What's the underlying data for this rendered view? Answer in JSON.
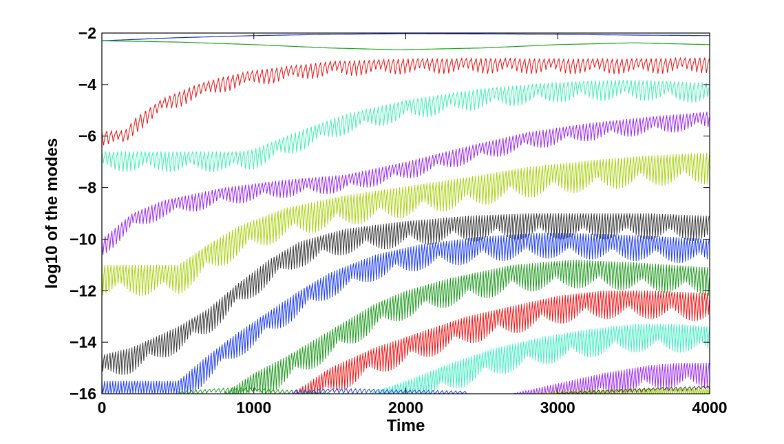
{
  "chart_data": {
    "type": "line",
    "title": "",
    "xlabel": "Time",
    "ylabel": "log10 of the modes",
    "xlim": [
      0,
      4000
    ],
    "ylim": [
      -16,
      -2
    ],
    "xticks": [
      0,
      1000,
      2000,
      3000,
      4000
    ],
    "yticks": [
      -2,
      -4,
      -6,
      -8,
      -10,
      -12,
      -14,
      -16
    ],
    "grid": false,
    "legend": "none",
    "series": [
      {
        "color": "#1f2fd0",
        "noise": 0.0,
        "noise_period": 0,
        "points": [
          [
            0,
            -2.3
          ],
          [
            500,
            -2.18
          ],
          [
            1000,
            -2.1
          ],
          [
            1500,
            -2.05
          ],
          [
            2000,
            -2.02
          ],
          [
            2500,
            -2.03
          ],
          [
            3000,
            -2.05
          ],
          [
            3500,
            -2.08
          ],
          [
            4000,
            -2.1
          ]
        ]
      },
      {
        "color": "#1aa31a",
        "noise": 0.0,
        "noise_period": 0,
        "points": [
          [
            0,
            -2.3
          ],
          [
            500,
            -2.35
          ],
          [
            1000,
            -2.45
          ],
          [
            1500,
            -2.58
          ],
          [
            1950,
            -2.65
          ],
          [
            2500,
            -2.58
          ],
          [
            3000,
            -2.45
          ],
          [
            3500,
            -2.38
          ],
          [
            4000,
            -2.45
          ]
        ]
      },
      {
        "color": "#e81010",
        "noise": 0.6,
        "noise_period": 32,
        "points": [
          [
            0,
            -5.8
          ],
          [
            150,
            -5.8
          ],
          [
            220,
            -5.3
          ],
          [
            400,
            -4.55
          ],
          [
            600,
            -4.05
          ],
          [
            800,
            -3.7
          ],
          [
            1000,
            -3.45
          ],
          [
            1500,
            -3.1
          ],
          [
            2000,
            -3.0
          ],
          [
            2500,
            -2.98
          ],
          [
            3000,
            -3.0
          ],
          [
            3500,
            -3.0
          ],
          [
            4000,
            -2.95
          ]
        ]
      },
      {
        "color": "#3df0b0",
        "noise": 0.8,
        "noise_period": 26,
        "points": [
          [
            0,
            -6.6
          ],
          [
            900,
            -6.6
          ],
          [
            1000,
            -6.5
          ],
          [
            1300,
            -5.8
          ],
          [
            1600,
            -5.15
          ],
          [
            2000,
            -4.6
          ],
          [
            2500,
            -4.15
          ],
          [
            3000,
            -3.9
          ],
          [
            3400,
            -3.82
          ],
          [
            3700,
            -3.85
          ],
          [
            4000,
            -3.95
          ]
        ]
      },
      {
        "color": "#9a28ea",
        "noise": 0.7,
        "noise_period": 22,
        "points": [
          [
            0,
            -10.0
          ],
          [
            100,
            -9.5
          ],
          [
            200,
            -9.0
          ],
          [
            400,
            -8.5
          ],
          [
            800,
            -8.0
          ],
          [
            1200,
            -7.7
          ],
          [
            1600,
            -7.5
          ],
          [
            2000,
            -7.0
          ],
          [
            2400,
            -6.4
          ],
          [
            2800,
            -5.85
          ],
          [
            3200,
            -5.5
          ],
          [
            3600,
            -5.25
          ],
          [
            4000,
            -5.05
          ]
        ]
      },
      {
        "color": "#a6d20a",
        "noise": 1.2,
        "noise_period": 20,
        "points": [
          [
            0,
            -11.0
          ],
          [
            500,
            -11.0
          ],
          [
            700,
            -10.2
          ],
          [
            900,
            -9.5
          ],
          [
            1200,
            -8.8
          ],
          [
            1600,
            -8.3
          ],
          [
            2000,
            -7.95
          ],
          [
            2400,
            -7.6
          ],
          [
            2800,
            -7.2
          ],
          [
            3200,
            -6.95
          ],
          [
            3600,
            -6.75
          ],
          [
            4000,
            -6.65
          ]
        ]
      },
      {
        "color": "#3a3a3a",
        "noise": 1.0,
        "noise_period": 18,
        "points": [
          [
            0,
            -14.5
          ],
          [
            200,
            -14.2
          ],
          [
            500,
            -13.4
          ],
          [
            700,
            -12.7
          ],
          [
            900,
            -11.7
          ],
          [
            1100,
            -10.8
          ],
          [
            1300,
            -10.1
          ],
          [
            1600,
            -9.6
          ],
          [
            2000,
            -9.3
          ],
          [
            2400,
            -9.1
          ],
          [
            2800,
            -9.0
          ],
          [
            3200,
            -9.0
          ],
          [
            3600,
            -9.0
          ],
          [
            4000,
            -9.1
          ]
        ]
      },
      {
        "color": "#1f3ff0",
        "noise": 1.0,
        "noise_period": 18,
        "points": [
          [
            0,
            -15.5
          ],
          [
            500,
            -15.5
          ],
          [
            700,
            -14.5
          ],
          [
            900,
            -13.6
          ],
          [
            1100,
            -12.8
          ],
          [
            1300,
            -12.0
          ],
          [
            1500,
            -11.3
          ],
          [
            1800,
            -10.6
          ],
          [
            2100,
            -10.2
          ],
          [
            2500,
            -9.9
          ],
          [
            2900,
            -9.75
          ],
          [
            3300,
            -9.8
          ],
          [
            3700,
            -9.9
          ],
          [
            4000,
            -10.0
          ]
        ]
      },
      {
        "color": "#1e9a1e",
        "noise": 1.1,
        "noise_period": 18,
        "points": [
          [
            800,
            -16.0
          ],
          [
            1000,
            -15.2
          ],
          [
            1200,
            -14.6
          ],
          [
            1400,
            -13.9
          ],
          [
            1600,
            -13.2
          ],
          [
            1800,
            -12.5
          ],
          [
            2000,
            -12.0
          ],
          [
            2300,
            -11.5
          ],
          [
            2700,
            -11.0
          ],
          [
            3100,
            -10.8
          ],
          [
            3500,
            -10.9
          ],
          [
            4000,
            -11.1
          ]
        ]
      },
      {
        "color": "#f01515",
        "noise": 1.1,
        "noise_period": 18,
        "points": [
          [
            1250,
            -16.0
          ],
          [
            1500,
            -15.0
          ],
          [
            1800,
            -14.2
          ],
          [
            2100,
            -13.6
          ],
          [
            2400,
            -13.0
          ],
          [
            2700,
            -12.6
          ],
          [
            3000,
            -12.2
          ],
          [
            3300,
            -12.0
          ],
          [
            3600,
            -12.0
          ],
          [
            4000,
            -12.1
          ]
        ]
      },
      {
        "color": "#40f0c0",
        "noise": 1.1,
        "noise_period": 18,
        "points": [
          [
            1750,
            -16.0
          ],
          [
            2000,
            -15.5
          ],
          [
            2300,
            -14.8
          ],
          [
            2600,
            -14.2
          ],
          [
            2900,
            -13.8
          ],
          [
            3200,
            -13.5
          ],
          [
            3500,
            -13.3
          ],
          [
            3800,
            -13.3
          ],
          [
            4000,
            -13.4
          ]
        ]
      },
      {
        "color": "#9d2cf0",
        "noise": 1.0,
        "noise_period": 18,
        "points": [
          [
            2700,
            -16.0
          ],
          [
            3000,
            -15.6
          ],
          [
            3300,
            -15.2
          ],
          [
            3600,
            -14.9
          ],
          [
            3800,
            -14.8
          ],
          [
            4000,
            -14.8
          ]
        ]
      },
      {
        "color": "#a6d20a",
        "noise": 0.3,
        "noise_period": 14,
        "points": [
          [
            2800,
            -16.0
          ],
          [
            3200,
            -15.85
          ],
          [
            3600,
            -15.8
          ],
          [
            4000,
            -15.8
          ]
        ]
      },
      {
        "color": "#3a3a3a",
        "noise": 0.15,
        "noise_period": 30,
        "points": [
          [
            3000,
            -15.95
          ],
          [
            3500,
            -15.8
          ],
          [
            4000,
            -15.7
          ]
        ]
      },
      {
        "color": "#1e9a1e",
        "noise": 0.2,
        "noise_period": 30,
        "points": [
          [
            500,
            -15.9
          ],
          [
            900,
            -15.75
          ],
          [
            1200,
            -15.85
          ],
          [
            1500,
            -15.95
          ]
        ]
      },
      {
        "color": "#1f3ff0",
        "noise": 0.2,
        "noise_period": 30,
        "points": [
          [
            1250,
            -15.85
          ],
          [
            1600,
            -15.8
          ],
          [
            2000,
            -15.85
          ],
          [
            2400,
            -15.9
          ]
        ]
      }
    ]
  }
}
